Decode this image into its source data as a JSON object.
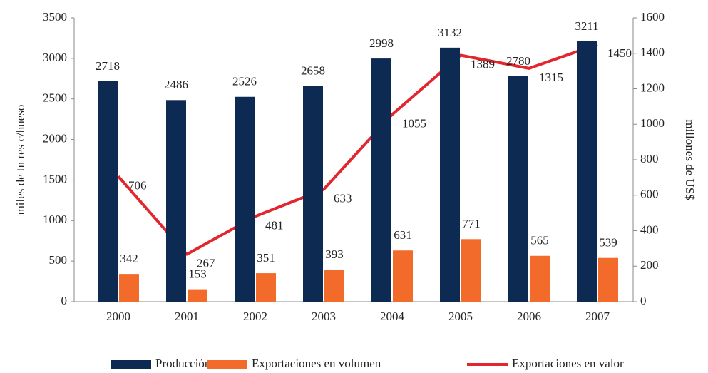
{
  "chart_data": {
    "type": "bar",
    "categories": [
      "2000",
      "2001",
      "2002",
      "2003",
      "2004",
      "2005",
      "2006",
      "2007"
    ],
    "series": [
      {
        "name": "Producción",
        "color": "#0d2b52",
        "values": [
          2718,
          2486,
          2526,
          2658,
          2998,
          3132,
          2780,
          3211
        ]
      },
      {
        "name": "Exportaciones en volumen",
        "color": "#f26b2b",
        "values": [
          342,
          153,
          351,
          393,
          631,
          771,
          565,
          539
        ]
      },
      {
        "name": "Exportaciones en valor",
        "color": "#e3262d",
        "type": "line",
        "axis": "y2",
        "values": [
          706,
          267,
          481,
          633,
          1055,
          1389,
          1315,
          1450
        ]
      }
    ],
    "ylabel": "miles de tn res c/hueso",
    "y2label": "millones de US$",
    "ylim": [
      0,
      3500
    ],
    "yticks": [
      0,
      500,
      1000,
      1500,
      2000,
      2500,
      3000,
      3500
    ],
    "y2lim": [
      0,
      1600
    ],
    "y2ticks": [
      0,
      200,
      400,
      600,
      800,
      1000,
      1200,
      1400,
      1600
    ],
    "legend": "bottom"
  }
}
